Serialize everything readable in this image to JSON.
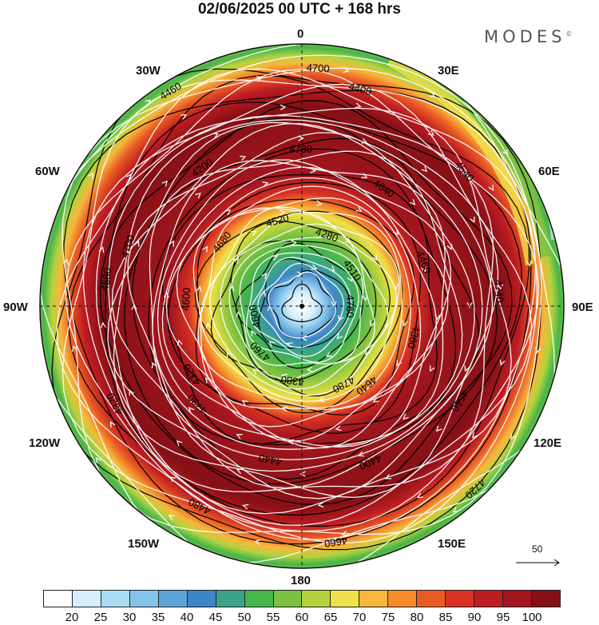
{
  "title": "02/06/2025  00 UTC  + 168 hrs",
  "brand": "MODES",
  "brand_mark": "©",
  "longitude_labels": [
    {
      "key": "n",
      "text": "0"
    },
    {
      "key": "w30",
      "text": "30W"
    },
    {
      "key": "e30",
      "text": "30E"
    },
    {
      "key": "w60",
      "text": "60W"
    },
    {
      "key": "e60",
      "text": "60E"
    },
    {
      "key": "w90",
      "text": "90W"
    },
    {
      "key": "e90",
      "text": "90E"
    },
    {
      "key": "w120",
      "text": "120W"
    },
    {
      "key": "e120",
      "text": "120E"
    },
    {
      "key": "w150",
      "text": "150W"
    },
    {
      "key": "e150",
      "text": "150E"
    },
    {
      "key": "s",
      "text": "180"
    }
  ],
  "contour_labels": [
    "4760",
    "4730",
    "4700",
    "4640",
    "4580",
    "4510",
    "4440",
    "4460",
    "4360",
    "4320",
    "4280",
    "4400",
    "4390",
    "4460",
    "4480",
    "4520",
    "4560",
    "4600",
    "4640",
    "4660",
    "4680",
    "4740",
    "4760",
    "4780",
    "4720",
    "4600",
    "4540",
    "4380",
    "4200",
    "4500",
    "4320",
    "4400",
    "4780",
    "4700"
  ],
  "vector_reference": "50",
  "colorbar": {
    "ticks": [
      "20",
      "25",
      "30",
      "35",
      "40",
      "45",
      "50",
      "55",
      "60",
      "65",
      "70",
      "75",
      "80",
      "85",
      "90",
      "95",
      "100"
    ],
    "colors": [
      "#ffffff",
      "#d6effb",
      "#a9dcf4",
      "#84c3ea",
      "#5fa4d9",
      "#3f86c6",
      "#3aa38a",
      "#46b54b",
      "#7cc142",
      "#b5d23e",
      "#f1e04a",
      "#f7b73c",
      "#f48a2a",
      "#ea5b23",
      "#d93224",
      "#bd1d22",
      "#a3161e",
      "#851016"
    ]
  }
}
